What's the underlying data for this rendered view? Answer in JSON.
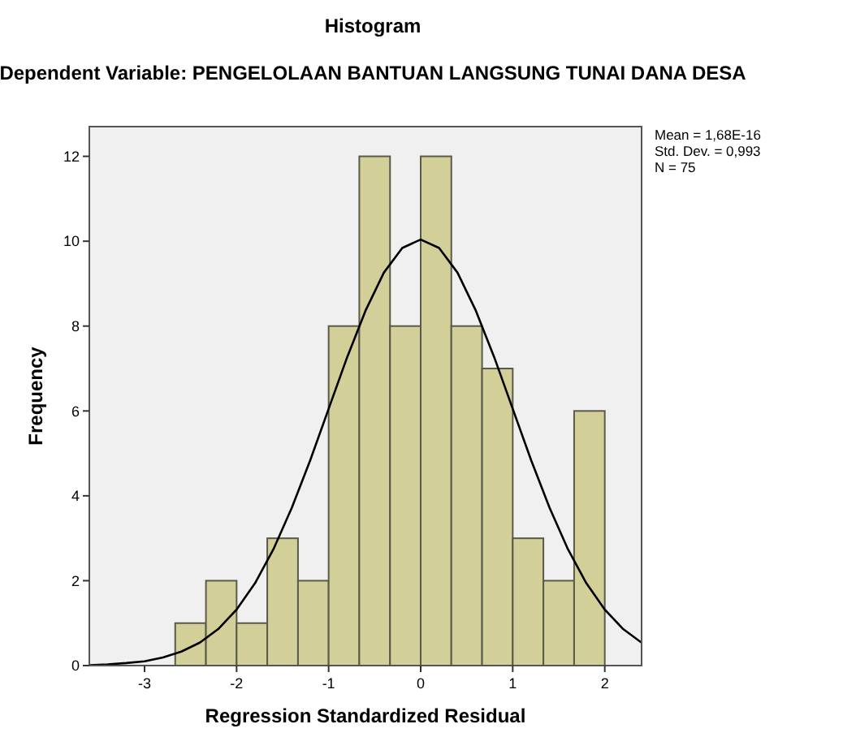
{
  "chart_data": {
    "type": "histogram",
    "title": "Histogram",
    "subtitle": "Dependent Variable: PENGELOLAAN BANTUAN LANGSUNG TUNAI DANA DESA",
    "xlabel": "Regression Standardized Residual",
    "ylabel": "Frequency",
    "bins": [
      -2.667,
      -2.333,
      -2,
      -1.667,
      -1.333,
      -1,
      -0.667,
      -0.333,
      0,
      0.333,
      0.667,
      1,
      1.333,
      1.667,
      2
    ],
    "values": [
      1,
      2,
      1,
      3,
      2,
      8,
      12,
      8,
      12,
      8,
      7,
      3,
      2,
      6
    ],
    "color": "#d3cf99",
    "series": [
      {
        "type": "line",
        "color": "#000000",
        "x": [
          -3.6,
          -3.4,
          -3.2,
          -3,
          -2.8,
          -2.6,
          -2.4,
          -2.2,
          -2,
          -1.8,
          -1.6,
          -1.4,
          -1.2,
          -1,
          -0.8,
          -0.6,
          -0.4,
          -0.2,
          0,
          0.2,
          0.4,
          0.6,
          0.8,
          1,
          1.2,
          1.4,
          1.6,
          1.8,
          2,
          2.2,
          2.4
        ],
        "values": [
          0.01,
          0.03,
          0.06,
          0.1,
          0.19,
          0.33,
          0.54,
          0.86,
          1.32,
          1.94,
          2.74,
          3.72,
          4.84,
          6.05,
          7.26,
          8.36,
          9.26,
          9.84,
          10.04,
          9.84,
          9.26,
          8.36,
          7.26,
          6.05,
          4.84,
          3.72,
          2.74,
          1.94,
          1.32,
          0.86,
          0.54
        ]
      }
    ],
    "xlim": [
      -3.6,
      2.4
    ],
    "xticks": [
      -3,
      -2,
      -1,
      0,
      1,
      2
    ],
    "ylim": [
      0,
      12.7
    ],
    "yticks": [
      0,
      2,
      4,
      6,
      8,
      10,
      12
    ],
    "grid": false,
    "marker": "none",
    "line_style": "solid",
    "annotations": [
      "Mean = 1,68E-16",
      "Std. Dev. = 0,993",
      "N = 75"
    ]
  }
}
